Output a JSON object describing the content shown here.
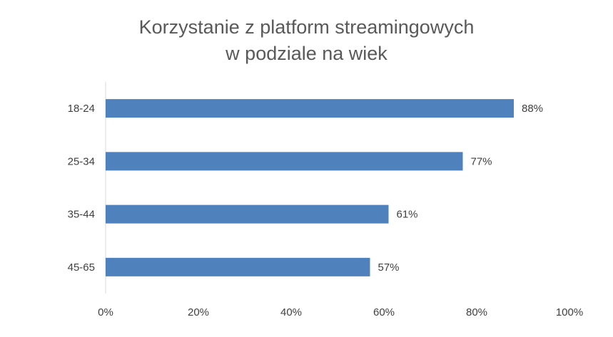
{
  "chart_data": {
    "type": "bar",
    "orientation": "horizontal",
    "title": [
      "Korzystanie z platform streamingowych",
      "w podziale na wiek"
    ],
    "categories": [
      "18-24",
      "25-34",
      "35-44",
      "45-65"
    ],
    "values": [
      88,
      77,
      61,
      57
    ],
    "data_labels": [
      "88%",
      "77%",
      "61%",
      "57%"
    ],
    "xlabel": "",
    "ylabel": "",
    "xlim": [
      0,
      100
    ],
    "x_ticks": [
      0,
      20,
      40,
      60,
      80,
      100
    ],
    "x_tick_labels": [
      "0%",
      "20%",
      "40%",
      "60%",
      "80%",
      "100%"
    ],
    "grid": false,
    "legend": "none",
    "bar_color": "#4F81BD"
  }
}
